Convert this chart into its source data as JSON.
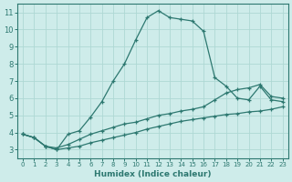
{
  "xlabel": "Humidex (Indice chaleur)",
  "bg_color": "#ceecea",
  "grid_color": "#aed8d4",
  "line_color": "#2d7870",
  "xlim": [
    -0.5,
    23.5
  ],
  "ylim": [
    2.5,
    11.5
  ],
  "xticks": [
    0,
    1,
    2,
    3,
    4,
    5,
    6,
    7,
    8,
    9,
    10,
    11,
    12,
    13,
    14,
    15,
    16,
    17,
    18,
    19,
    20,
    21,
    22,
    23
  ],
  "yticks": [
    3,
    4,
    5,
    6,
    7,
    8,
    9,
    10,
    11
  ],
  "line1_x": [
    0,
    1,
    2,
    3,
    4,
    5,
    6,
    7,
    8,
    9,
    10,
    11,
    12,
    13,
    14,
    15,
    16,
    17,
    18,
    19,
    20,
    21,
    22,
    23
  ],
  "line1_y": [
    3.9,
    3.7,
    3.2,
    3.0,
    3.9,
    4.1,
    4.9,
    5.8,
    7.0,
    8.0,
    9.4,
    10.7,
    11.1,
    10.7,
    10.6,
    10.5,
    9.9,
    7.2,
    6.7,
    6.0,
    5.9,
    6.7,
    5.9,
    5.8
  ],
  "line2_x": [
    0,
    1,
    2,
    3,
    4,
    5,
    6,
    7,
    8,
    9,
    10,
    11,
    12,
    13,
    14,
    15,
    16,
    17,
    18,
    19,
    20,
    21,
    22,
    23
  ],
  "line2_y": [
    3.9,
    3.7,
    3.2,
    3.1,
    3.3,
    3.6,
    3.9,
    4.1,
    4.3,
    4.5,
    4.6,
    4.8,
    5.0,
    5.1,
    5.25,
    5.35,
    5.5,
    5.9,
    6.3,
    6.5,
    6.6,
    6.8,
    6.1,
    6.0
  ],
  "line3_x": [
    0,
    1,
    2,
    3,
    4,
    5,
    6,
    7,
    8,
    9,
    10,
    11,
    12,
    13,
    14,
    15,
    16,
    17,
    18,
    19,
    20,
    21,
    22,
    23
  ],
  "line3_y": [
    3.9,
    3.7,
    3.2,
    3.0,
    3.1,
    3.2,
    3.4,
    3.55,
    3.7,
    3.85,
    4.0,
    4.2,
    4.35,
    4.5,
    4.65,
    4.75,
    4.85,
    4.95,
    5.05,
    5.1,
    5.2,
    5.25,
    5.35,
    5.5
  ]
}
